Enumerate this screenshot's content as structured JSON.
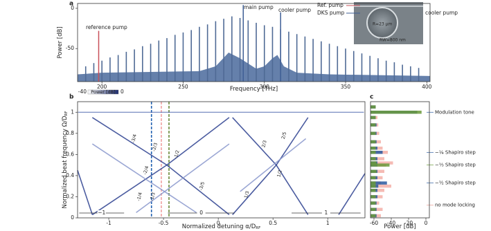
{
  "chart_data": [
    {
      "type": "spectrum",
      "panel": "a",
      "xlabel": "Frequency [THz]",
      "ylabel": "Power [dB]",
      "xlim": [
        185,
        402
      ],
      "ylim": [
        -91,
        6
      ],
      "xticks": [
        200,
        250,
        300,
        350,
        400
      ],
      "yticks": [
        -50,
        0
      ],
      "comb": {
        "color": "#4f6a95",
        "x": [
          190,
          195,
          200,
          205,
          210,
          215,
          220,
          225,
          230,
          235,
          240,
          245,
          250,
          255,
          260,
          265,
          270,
          275,
          280,
          285,
          290,
          295,
          300,
          305,
          310,
          315,
          320,
          325,
          330,
          335,
          340,
          345,
          350,
          355,
          360,
          365,
          370,
          375,
          380,
          385,
          390,
          395
        ],
        "values": [
          -72,
          -68,
          -65,
          -61,
          -58,
          -54,
          -51,
          -47,
          -44,
          -40,
          -37,
          -33,
          -30,
          -27,
          -23,
          -20,
          -16,
          -13,
          -10,
          -12,
          -15,
          -18,
          -21,
          -23,
          -26,
          -29,
          -32,
          -35,
          -38,
          -41,
          -44,
          -47,
          -50,
          -53,
          -56,
          -59,
          -62,
          -65,
          -67,
          -70,
          -72,
          -74
        ]
      },
      "floor": {
        "color": "#4a6a9c",
        "x": [
          185,
          200,
          230,
          260,
          270,
          278,
          285,
          295,
          300,
          305,
          308,
          312,
          320,
          340,
          370,
          402
        ],
        "values": [
          -82,
          -80,
          -79,
          -78,
          -72,
          -55,
          -62,
          -75,
          -72,
          -62,
          -58,
          -72,
          -80,
          -82,
          -83,
          -84
        ]
      },
      "pumps": {
        "x": [
          198,
          287,
          310
        ],
        "values": [
          -28,
          4,
          -5
        ],
        "colors": [
          "#c8505a",
          "#3f5f96",
          "#3f5f96"
        ]
      },
      "annotations": [
        "reference pump",
        "main pump",
        "cooler pump"
      ],
      "annotation_colors": [
        "#c8505a",
        "#3f5f96",
        "#3f5f96"
      ],
      "inset_labels": [
        "Ref. pump",
        "DKS pump",
        "cooler pump",
        "R=23 μm",
        "RW=800 nm"
      ],
      "inset_colors": [
        "#c8505a",
        "#3f5f96",
        "#3f5f96",
        "#ffffff",
        "#ffffff"
      ]
    },
    {
      "type": "line",
      "panel": "b",
      "xlabel": "Normalized detuning α/D",
      "xlabel_sub": "RF",
      "ylabel": "Normalized beat frequency Ω/D",
      "ylabel_sub": "RF",
      "xlim": [
        -1.285,
        1.34
      ],
      "ylim": [
        0,
        1.1
      ],
      "xticks": [
        -1,
        -0.5,
        0,
        0.5,
        1
      ],
      "yticks": [
        0,
        0.2,
        0.4,
        0.6,
        0.8,
        1
      ],
      "colorbar": {
        "label": "Power [dB]",
        "ticks": [
          -40,
          0
        ],
        "colors": [
          "#ffffff",
          "#1a2a6c"
        ]
      },
      "series": [
        {
          "color": "#3a55a5",
          "x": [
            -1.28,
            1.33
          ],
          "values": [
            1,
            1
          ]
        },
        {
          "color": "#2b3f8f",
          "x": [
            -1.285,
            -1.15
          ],
          "values": [
            0.45,
            0.03
          ]
        },
        {
          "color": "#2b3f8f",
          "x": [
            -1.15,
            -0.47,
            0.1
          ],
          "values": [
            0.95,
            0.5,
            0.03
          ]
        },
        {
          "color": "#2b3f8f",
          "x": [
            -1.15,
            -0.47,
            0.1
          ],
          "values": [
            0.03,
            0.5,
            0.95
          ]
        },
        {
          "color": "#2b3f8f",
          "x": [
            0.13,
            0.53,
            0.82
          ],
          "values": [
            0.03,
            0.5,
            0.95
          ]
        },
        {
          "color": "#2b3f8f",
          "x": [
            0.13,
            0.53,
            0.82
          ],
          "values": [
            0.95,
            0.5,
            0.03
          ]
        },
        {
          "color": "#2b3f8f",
          "x": [
            1.1,
            1.34
          ],
          "values": [
            0.03,
            0.42
          ]
        },
        {
          "color": "#8a98cc",
          "x": [
            -1.15,
            -0.2
          ],
          "values": [
            0.7,
            0.05
          ]
        },
        {
          "color": "#8a98cc",
          "x": [
            -0.75,
            0.1
          ],
          "values": [
            0.05,
            0.7
          ]
        },
        {
          "color": "#8a98cc",
          "x": [
            0.2,
            0.8
          ],
          "values": [
            0.25,
            0.75
          ]
        }
      ],
      "vlines": [
        -0.61,
        -0.52,
        -0.45
      ],
      "vline_colors": [
        "#2060b0",
        "#f0a0a0",
        "#6a8a3a"
      ],
      "fraction_labels": [
        "-3/4",
        "-2/3",
        "-1/2",
        "2/3",
        "2/5",
        "-2/4",
        "1/2",
        "-1/4",
        "-1/3",
        "1/3",
        "-3/5"
      ],
      "step_labels": [
        "−1",
        "0",
        "1"
      ]
    },
    {
      "type": "hbar",
      "panel": "c",
      "xlabel": "Power [dB]",
      "xlim": [
        -64,
        4
      ],
      "ylim": [
        0,
        1.1
      ],
      "xticks": [
        -60,
        -40,
        -20,
        0
      ],
      "y": [
        0.02,
        0.08,
        0.14,
        0.2,
        0.26,
        0.3,
        0.33,
        0.38,
        0.44,
        0.5,
        0.52,
        0.56,
        0.62,
        0.66,
        0.72,
        0.8,
        0.88,
        0.95,
        1.0,
        1.05
      ],
      "series": [
        {
          "color": "#f4b0a8",
          "values": [
            -52,
            -50,
            -54,
            -50,
            -48,
            -40,
            -52,
            -50,
            -48,
            -46,
            -38,
            -48,
            -44,
            -50,
            -52,
            -54,
            -55,
            -56,
            -58,
            -58
          ]
        },
        {
          "color": "#2a5aa0",
          "values": [
            -57,
            -57,
            -57,
            -56,
            -56,
            -55,
            -45,
            -56,
            -56,
            -56,
            -56,
            -56,
            -50,
            -56,
            -57,
            -57,
            -57,
            -58,
            -10,
            -58
          ]
        },
        {
          "color": "#6a9a3a",
          "values": [
            -58,
            -58,
            -58,
            -58,
            -58,
            -58,
            -58,
            -58,
            -57,
            -42,
            -57,
            -58,
            -58,
            -58,
            -58,
            -58,
            -58,
            -58,
            -5,
            -58
          ]
        }
      ],
      "annotations": [
        "Modulation tone",
        "−¼ Shapiro step",
        "−⅓ Shapiro step",
        "−½ Shapiro step",
        "no mode locking"
      ],
      "annotation_colors": [
        "#2a5aa0",
        "#2a5aa0",
        "#6a9a3a",
        "#2a5aa0",
        "#e89a90"
      ]
    }
  ]
}
